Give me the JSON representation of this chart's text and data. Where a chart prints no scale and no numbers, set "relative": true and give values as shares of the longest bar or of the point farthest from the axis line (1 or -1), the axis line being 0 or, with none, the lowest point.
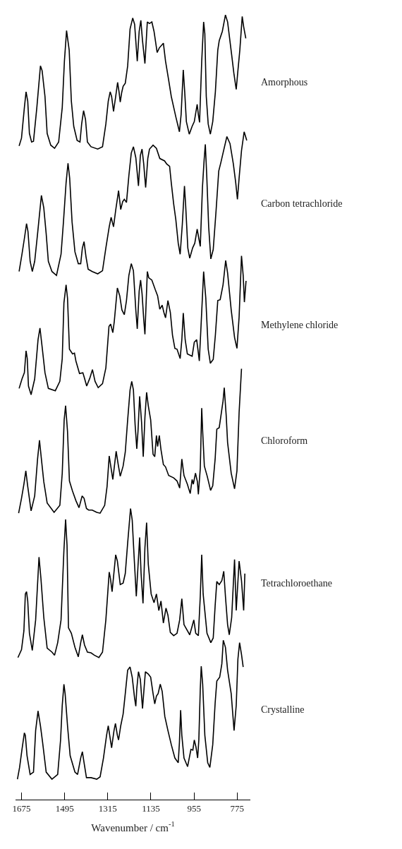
{
  "chart_data": {
    "type": "line",
    "relative": true,
    "xlabel": "Wavenumber / cm$^{-1}$",
    "xlim": [
      1700,
      720
    ],
    "xticks": [
      1675,
      1495,
      1315,
      1135,
      955,
      775
    ],
    "legend": false,
    "marker": "none",
    "line_style": "solid",
    "series": [
      {
        "name": "Amorphous",
        "color": "#000000",
        "x": [
          1685,
          1675,
          1663,
          1656,
          1649,
          1642,
          1633,
          1625,
          1611,
          1596,
          1589,
          1577,
          1568,
          1553,
          1537,
          1520,
          1505,
          1496,
          1487,
          1476,
          1467,
          1457,
          1443,
          1431,
          1424,
          1416,
          1408,
          1400,
          1385,
          1357,
          1337,
          1323,
          1313,
          1305,
          1299,
          1291,
          1282,
          1274,
          1268,
          1263,
          1257,
          1251,
          1242,
          1232,
          1222,
          1211,
          1203,
          1192,
          1184,
          1177,
          1170,
          1160,
          1150,
          1141,
          1131,
          1122,
          1109,
          1100,
          1083,
          1074,
          1061,
          1050,
          1031,
          1016,
          1009,
          1000,
          994,
          987,
          975,
          963,
          954,
          942,
          937,
          932,
          923,
          915,
          910,
          904,
          896,
          887,
          877,
          866,
          856,
          850,
          837,
          824,
          815,
          798,
          789,
          779,
          772,
          764,
          754,
          748,
          739
        ],
        "values": [
          0.833,
          0.843,
          0.882,
          0.902,
          0.89,
          0.849,
          0.838,
          0.839,
          0.882,
          0.935,
          0.929,
          0.896,
          0.849,
          0.834,
          0.83,
          0.838,
          0.882,
          0.941,
          0.98,
          0.955,
          0.89,
          0.858,
          0.84,
          0.838,
          0.861,
          0.878,
          0.867,
          0.838,
          0.832,
          0.829,
          0.832,
          0.861,
          0.89,
          0.902,
          0.896,
          0.877,
          0.896,
          0.914,
          0.902,
          0.889,
          0.901,
          0.909,
          0.913,
          0.935,
          0.982,
          0.996,
          0.988,
          0.941,
          0.979,
          0.993,
          0.967,
          0.938,
          0.991,
          0.989,
          0.991,
          0.979,
          0.952,
          0.958,
          0.964,
          0.941,
          0.917,
          0.896,
          0.87,
          0.851,
          0.873,
          0.93,
          0.902,
          0.864,
          0.848,
          0.858,
          0.864,
          0.886,
          0.873,
          0.863,
          0.941,
          0.991,
          0.976,
          0.896,
          0.861,
          0.848,
          0.864,
          0.902,
          0.955,
          0.967,
          0.979,
          1,
          0.991,
          0.949,
          0.926,
          0.905,
          0.929,
          0.955,
          0.998,
          0.985,
          0.97
        ]
      },
      {
        "name": "Carbon tetrachloride",
        "color": "#000000",
        "x": [
          1685,
          1673,
          1663,
          1654,
          1648,
          1639,
          1630,
          1620,
          1608,
          1592,
          1582,
          1572,
          1563,
          1548,
          1529,
          1510,
          1500,
          1489,
          1481,
          1474,
          1464,
          1452,
          1438,
          1428,
          1421,
          1414,
          1406,
          1397,
          1380,
          1357,
          1337,
          1323,
          1309,
          1301,
          1291,
          1282,
          1270,
          1261,
          1253,
          1246,
          1237,
          1227,
          1217,
          1208,
          1198,
          1187,
          1179,
          1172,
          1165,
          1157,
          1148,
          1141,
          1126,
          1112,
          1098,
          1078,
          1069,
          1057,
          1050,
          1040,
          1031,
          1021,
          1013,
          1004,
          995,
          990,
          981,
          973,
          961,
          952,
          942,
          935,
          929,
          920,
          913,
          908,
          902,
          894,
          885,
          875,
          863,
          852,
          843,
          834,
          818,
          805,
          791,
          781,
          774,
          767,
          757,
          746,
          735
        ],
        "values": [
          0.673,
          0.695,
          0.715,
          0.734,
          0.724,
          0.686,
          0.673,
          0.686,
          0.721,
          0.77,
          0.754,
          0.721,
          0.686,
          0.673,
          0.668,
          0.695,
          0.736,
          0.786,
          0.811,
          0.792,
          0.736,
          0.698,
          0.683,
          0.683,
          0.703,
          0.711,
          0.692,
          0.676,
          0.673,
          0.67,
          0.674,
          0.703,
          0.73,
          0.742,
          0.73,
          0.751,
          0.776,
          0.752,
          0.762,
          0.765,
          0.761,
          0.795,
          0.824,
          0.832,
          0.818,
          0.782,
          0.821,
          0.829,
          0.81,
          0.78,
          0.817,
          0.829,
          0.834,
          0.83,
          0.817,
          0.814,
          0.81,
          0.807,
          0.786,
          0.759,
          0.739,
          0.709,
          0.695,
          0.733,
          0.782,
          0.757,
          0.703,
          0.69,
          0.703,
          0.709,
          0.727,
          0.715,
          0.705,
          0.78,
          0.815,
          0.835,
          0.795,
          0.73,
          0.689,
          0.701,
          0.751,
          0.801,
          0.812,
          0.824,
          0.845,
          0.836,
          0.81,
          0.786,
          0.765,
          0.792,
          0.827,
          0.851,
          0.84
        ]
      },
      {
        "name": "Methylene chloride",
        "color": "#000000",
        "x": [
          1685,
          1673,
          1663,
          1656,
          1651,
          1646,
          1635,
          1620,
          1606,
          1598,
          1589,
          1577,
          1563,
          1534,
          1515,
          1505,
          1498,
          1489,
          1483,
          1475,
          1462,
          1454,
          1448,
          1433,
          1419,
          1414,
          1403,
          1390,
          1379,
          1368,
          1355,
          1337,
          1323,
          1310,
          1303,
          1294,
          1288,
          1275,
          1265,
          1256,
          1246,
          1237,
          1227,
          1217,
          1208,
          1198,
          1192,
          1184,
          1178,
          1172,
          1165,
          1160,
          1150,
          1144,
          1131,
          1117,
          1107,
          1098,
          1088,
          1081,
          1074,
          1064,
          1054,
          1045,
          1035,
          1026,
          1013,
          1006,
          1000,
          992,
          983,
          963,
          954,
          944,
          939,
          933,
          925,
          915,
          906,
          896,
          887,
          875,
          866,
          856,
          846,
          834,
          823,
          815,
          800,
          786,
          776,
          767,
          757,
          750,
          745,
          738
        ],
        "values": [
          0.524,
          0.536,
          0.544,
          0.572,
          0.562,
          0.527,
          0.516,
          0.536,
          0.586,
          0.601,
          0.577,
          0.544,
          0.524,
          0.521,
          0.533,
          0.562,
          0.633,
          0.656,
          0.639,
          0.574,
          0.568,
          0.569,
          0.559,
          0.543,
          0.544,
          0.539,
          0.527,
          0.537,
          0.548,
          0.533,
          0.525,
          0.53,
          0.55,
          0.603,
          0.606,
          0.595,
          0.609,
          0.652,
          0.642,
          0.624,
          0.618,
          0.636,
          0.668,
          0.683,
          0.674,
          0.624,
          0.6,
          0.648,
          0.662,
          0.645,
          0.612,
          0.593,
          0.673,
          0.665,
          0.662,
          0.65,
          0.642,
          0.625,
          0.63,
          0.621,
          0.614,
          0.636,
          0.621,
          0.592,
          0.575,
          0.574,
          0.562,
          0.586,
          0.62,
          0.586,
          0.568,
          0.565,
          0.583,
          0.586,
          0.574,
          0.559,
          0.609,
          0.673,
          0.639,
          0.574,
          0.556,
          0.561,
          0.592,
          0.636,
          0.637,
          0.656,
          0.687,
          0.671,
          0.624,
          0.589,
          0.575,
          0.615,
          0.693,
          0.668,
          0.634,
          0.661
        ]
      },
      {
        "name": "Chloroform",
        "color": "#000000",
        "x": [
          1687,
          1675,
          1665,
          1657,
          1649,
          1635,
          1620,
          1608,
          1600,
          1592,
          1582,
          1568,
          1539,
          1515,
          1505,
          1497,
          1491,
          1483,
          1475,
          1462,
          1448,
          1435,
          1422,
          1414,
          1404,
          1395,
          1380,
          1361,
          1347,
          1328,
          1318,
          1309,
          1301,
          1294,
          1280,
          1272,
          1263,
          1251,
          1242,
          1232,
          1222,
          1215,
          1208,
          1201,
          1194,
          1189,
          1182,
          1174,
          1167,
          1160,
          1153,
          1146,
          1136,
          1126,
          1119,
          1112,
          1107,
          1100,
          1093,
          1083,
          1074,
          1061,
          1040,
          1026,
          1015,
          1006,
          997,
          983,
          971,
          963,
          958,
          949,
          941,
          937,
          929,
          923,
          919,
          912,
          900,
          886,
          877,
          867,
          860,
          850,
          841,
          834,
          829,
          821,
          815,
          800,
          786,
          776,
          767,
          757
        ],
        "values": [
          0.365,
          0.384,
          0.402,
          0.419,
          0.399,
          0.368,
          0.387,
          0.434,
          0.458,
          0.434,
          0.405,
          0.378,
          0.366,
          0.375,
          0.416,
          0.484,
          0.502,
          0.469,
          0.406,
          0.393,
          0.381,
          0.372,
          0.387,
          0.384,
          0.371,
          0.369,
          0.369,
          0.366,
          0.365,
          0.375,
          0.399,
          0.438,
          0.422,
          0.408,
          0.444,
          0.428,
          0.412,
          0.425,
          0.443,
          0.484,
          0.522,
          0.533,
          0.522,
          0.478,
          0.447,
          0.469,
          0.514,
          0.481,
          0.437,
          0.487,
          0.519,
          0.502,
          0.484,
          0.44,
          0.437,
          0.464,
          0.45,
          0.464,
          0.446,
          0.427,
          0.424,
          0.413,
          0.41,
          0.406,
          0.397,
          0.434,
          0.413,
          0.402,
          0.39,
          0.408,
          0.402,
          0.416,
          0.405,
          0.389,
          0.422,
          0.499,
          0.469,
          0.425,
          0.412,
          0.394,
          0.4,
          0.434,
          0.472,
          0.474,
          0.493,
          0.508,
          0.525,
          0.49,
          0.455,
          0.416,
          0.396,
          0.419,
          0.493,
          0.549
        ]
      },
      {
        "name": "Tetrachloroethane",
        "color": "#000000",
        "x": [
          1690,
          1675,
          1665,
          1659,
          1654,
          1649,
          1642,
          1630,
          1616,
          1602,
          1594,
          1582,
          1568,
          1548,
          1537,
          1524,
          1510,
          1498,
          1491,
          1485,
          1479,
          1467,
          1452,
          1438,
          1428,
          1421,
          1412,
          1400,
          1385,
          1371,
          1352,
          1337,
          1323,
          1309,
          1304,
          1297,
          1282,
          1275,
          1263,
          1251,
          1242,
          1232,
          1220,
          1213,
          1205,
          1196,
          1189,
          1182,
          1176,
          1168,
          1160,
          1153,
          1146,
          1134,
          1122,
          1112,
          1102,
          1093,
          1083,
          1072,
          1064,
          1054,
          1040,
          1026,
          1015,
          1006,
          997,
          973,
          963,
          956,
          948,
          937,
          929,
          923,
          917,
          901,
          885,
          875,
          867,
          860,
          850,
          839,
          831,
          824,
          815,
          808,
          798,
          786,
          779,
          767,
          757,
          748,
          743
        ],
        "values": [
          0.181,
          0.191,
          0.215,
          0.262,
          0.265,
          0.253,
          0.212,
          0.19,
          0.229,
          0.309,
          0.282,
          0.232,
          0.193,
          0.188,
          0.184,
          0.2,
          0.229,
          0.318,
          0.357,
          0.324,
          0.219,
          0.212,
          0.194,
          0.182,
          0.2,
          0.21,
          0.197,
          0.188,
          0.187,
          0.184,
          0.181,
          0.188,
          0.229,
          0.29,
          0.282,
          0.265,
          0.312,
          0.304,
          0.274,
          0.276,
          0.288,
          0.327,
          0.371,
          0.356,
          0.309,
          0.259,
          0.297,
          0.334,
          0.288,
          0.25,
          0.321,
          0.353,
          0.3,
          0.262,
          0.251,
          0.262,
          0.241,
          0.253,
          0.225,
          0.244,
          0.235,
          0.213,
          0.209,
          0.212,
          0.229,
          0.256,
          0.223,
          0.21,
          0.221,
          0.229,
          0.212,
          0.209,
          0.259,
          0.312,
          0.262,
          0.212,
          0.2,
          0.206,
          0.247,
          0.278,
          0.274,
          0.279,
          0.291,
          0.259,
          0.223,
          0.21,
          0.232,
          0.306,
          0.241,
          0.304,
          0.279,
          0.241,
          0.288
        ]
      },
      {
        "name": "Crystalline",
        "color": "#000000",
        "x": [
          1692,
          1683,
          1673,
          1663,
          1659,
          1652,
          1639,
          1625,
          1616,
          1606,
          1596,
          1587,
          1572,
          1548,
          1524,
          1512,
          1505,
          1498,
          1493,
          1483,
          1472,
          1452,
          1441,
          1428,
          1421,
          1414,
          1404,
          1385,
          1361,
          1347,
          1333,
          1320,
          1313,
          1307,
          1299,
          1289,
          1283,
          1275,
          1270,
          1261,
          1251,
          1242,
          1232,
          1222,
          1213,
          1203,
          1198,
          1194,
          1187,
          1179,
          1174,
          1170,
          1163,
          1158,
          1146,
          1136,
          1126,
          1119,
          1112,
          1105,
          1096,
          1088,
          1077,
          1064,
          1050,
          1035,
          1021,
          1016,
          1011,
          1006,
          997,
          982,
          968,
          960,
          954,
          947,
          940,
          935,
          929,
          925,
          919,
          910,
          898,
          889,
          877,
          867,
          860,
          848,
          839,
          833,
          824,
          815,
          800,
          788,
          779,
          772,
          765,
          757,
          750
        ],
        "values": [
          0.026,
          0.041,
          0.064,
          0.085,
          0.082,
          0.056,
          0.032,
          0.035,
          0.088,
          0.113,
          0.094,
          0.073,
          0.035,
          0.026,
          0.032,
          0.076,
          0.12,
          0.147,
          0.135,
          0.094,
          0.056,
          0.035,
          0.032,
          0.053,
          0.061,
          0.047,
          0.028,
          0.028,
          0.026,
          0.029,
          0.053,
          0.082,
          0.094,
          0.082,
          0.066,
          0.088,
          0.097,
          0.082,
          0.076,
          0.094,
          0.109,
          0.135,
          0.165,
          0.169,
          0.156,
          0.129,
          0.119,
          0.141,
          0.163,
          0.153,
          0.132,
          0.116,
          0.144,
          0.163,
          0.16,
          0.156,
          0.135,
          0.122,
          0.132,
          0.135,
          0.147,
          0.138,
          0.106,
          0.088,
          0.07,
          0.053,
          0.047,
          0.073,
          0.114,
          0.082,
          0.053,
          0.042,
          0.064,
          0.063,
          0.076,
          0.067,
          0.053,
          0.076,
          0.141,
          0.17,
          0.147,
          0.082,
          0.047,
          0.041,
          0.07,
          0.123,
          0.151,
          0.156,
          0.173,
          0.203,
          0.194,
          0.165,
          0.135,
          0.088,
          0.12,
          0.179,
          0.2,
          0.185,
          0.169
        ]
      }
    ]
  }
}
